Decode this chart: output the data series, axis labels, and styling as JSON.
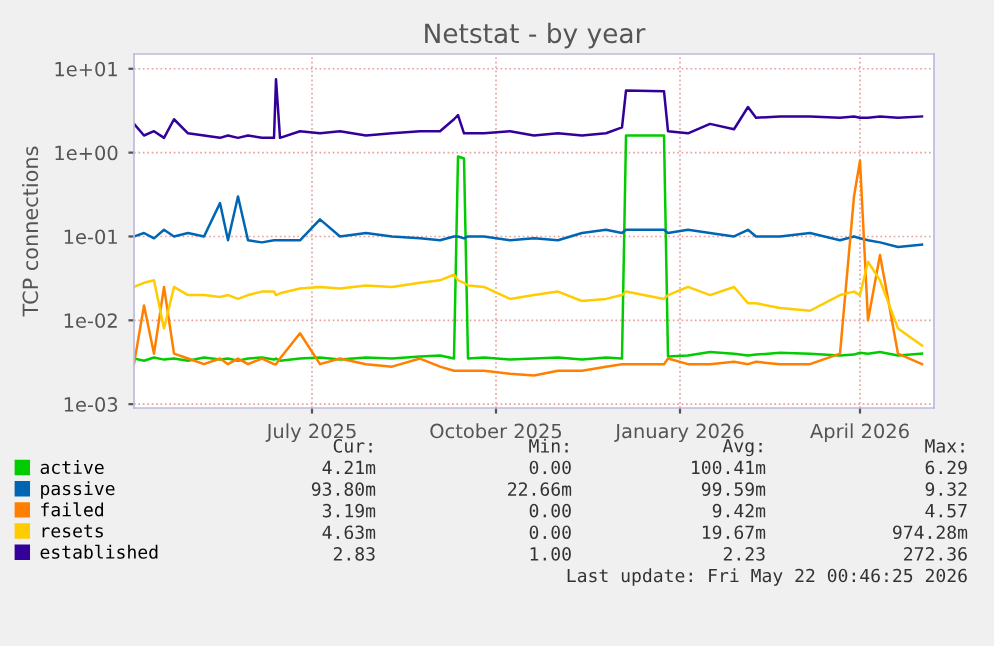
{
  "chart_data": {
    "type": "line",
    "title": "Netstat - by year",
    "ylabel": "TCP connections",
    "log": "y",
    "x": [
      "2025-04-03",
      "2025-04-08",
      "2025-04-13",
      "2025-04-18",
      "2025-04-23",
      "2025-04-30",
      "2025-05-08",
      "2025-05-16",
      "2025-05-20",
      "2025-05-25",
      "2025-05-30",
      "2025-06-06",
      "2025-06-12",
      "2025-06-13",
      "2025-06-15",
      "2025-06-25",
      "2025-07-05",
      "2025-07-15",
      "2025-07-28",
      "2025-08-10",
      "2025-08-24",
      "2025-09-03",
      "2025-09-10",
      "2025-09-12",
      "2025-09-15",
      "2025-09-17",
      "2025-09-25",
      "2025-10-08",
      "2025-10-20",
      "2025-11-01",
      "2025-11-13",
      "2025-11-25",
      "2025-12-03",
      "2025-12-05",
      "2025-12-24",
      "2025-12-26",
      "2026-01-05",
      "2026-01-16",
      "2026-01-28",
      "2026-02-04",
      "2026-02-08",
      "2026-02-20",
      "2026-03-07",
      "2026-03-22",
      "2026-03-29",
      "2026-04-01",
      "2026-04-05",
      "2026-04-11",
      "2026-04-20",
      "2026-05-02"
    ],
    "series": [
      {
        "name": "active",
        "color": "#00cc00",
        "values": [
          0.0035,
          0.0033,
          0.0036,
          0.0034,
          0.0035,
          0.0033,
          0.0036,
          0.0034,
          0.0035,
          0.0033,
          0.0035,
          0.0036,
          0.0034,
          0.0035,
          0.0033,
          0.0035,
          0.0036,
          0.0034,
          0.0036,
          0.0035,
          0.0037,
          0.0038,
          0.0035,
          0.9,
          0.85,
          0.0035,
          0.0036,
          0.0034,
          0.0035,
          0.0036,
          0.0034,
          0.0036,
          0.0035,
          1.6,
          1.6,
          0.0037,
          0.0038,
          0.0042,
          0.004,
          0.0038,
          0.0039,
          0.0041,
          0.004,
          0.0038,
          0.0039,
          0.0041,
          0.004,
          0.0042,
          0.0038,
          0.004
        ]
      },
      {
        "name": "passive",
        "color": "#0066b3",
        "values": [
          0.1,
          0.11,
          0.095,
          0.12,
          0.1,
          0.11,
          0.1,
          0.25,
          0.09,
          0.3,
          0.09,
          0.085,
          0.09,
          0.09,
          0.09,
          0.09,
          0.16,
          0.1,
          0.11,
          0.1,
          0.095,
          0.09,
          0.1,
          0.1,
          0.095,
          0.1,
          0.1,
          0.09,
          0.095,
          0.09,
          0.11,
          0.12,
          0.11,
          0.12,
          0.12,
          0.11,
          0.12,
          0.11,
          0.1,
          0.12,
          0.1,
          0.1,
          0.11,
          0.09,
          0.1,
          0.095,
          0.09,
          0.085,
          0.075,
          0.08
        ]
      },
      {
        "name": "failed",
        "color": "#ff8000",
        "values": [
          0.003,
          0.015,
          0.004,
          0.025,
          0.004,
          0.0035,
          0.003,
          0.0035,
          0.003,
          0.0035,
          0.003,
          0.0035,
          0.003,
          0.003,
          0.0035,
          0.007,
          0.003,
          0.0035,
          0.003,
          0.0028,
          0.0035,
          0.0028,
          0.0025,
          0.0025,
          0.0025,
          0.0025,
          0.0025,
          0.0023,
          0.0022,
          0.0025,
          0.0025,
          0.0028,
          0.003,
          0.003,
          0.003,
          0.0035,
          0.003,
          0.003,
          0.0032,
          0.003,
          0.0032,
          0.003,
          0.003,
          0.004,
          0.3,
          0.8,
          0.01,
          0.06,
          0.004,
          0.003
        ]
      },
      {
        "name": "resets",
        "color": "#ffcc00",
        "values": [
          0.025,
          0.028,
          0.03,
          0.008,
          0.025,
          0.02,
          0.02,
          0.019,
          0.02,
          0.018,
          0.02,
          0.022,
          0.022,
          0.02,
          0.021,
          0.024,
          0.025,
          0.024,
          0.026,
          0.025,
          0.028,
          0.03,
          0.035,
          0.03,
          0.028,
          0.026,
          0.025,
          0.018,
          0.02,
          0.022,
          0.017,
          0.018,
          0.02,
          0.022,
          0.018,
          0.02,
          0.025,
          0.02,
          0.025,
          0.016,
          0.016,
          0.014,
          0.013,
          0.02,
          0.022,
          0.02,
          0.05,
          0.03,
          0.008,
          0.005
        ]
      },
      {
        "name": "established",
        "color": "#330099",
        "values": [
          2.2,
          1.6,
          1.8,
          1.5,
          2.5,
          1.7,
          1.6,
          1.5,
          1.6,
          1.5,
          1.6,
          1.5,
          1.5,
          7.5,
          1.5,
          1.8,
          1.7,
          1.8,
          1.6,
          1.7,
          1.8,
          1.8,
          2.5,
          2.8,
          1.7,
          1.7,
          1.7,
          1.8,
          1.6,
          1.7,
          1.6,
          1.7,
          2.0,
          5.5,
          5.4,
          1.8,
          1.7,
          2.2,
          1.9,
          3.5,
          2.6,
          2.7,
          2.7,
          2.6,
          2.7,
          2.6,
          2.6,
          2.7,
          2.6,
          2.7
        ]
      }
    ],
    "xlim": [
      "2025-04-03",
      "2026-05-08"
    ],
    "xticks": [
      {
        "value": "2025-07-01",
        "label": "July 2025"
      },
      {
        "value": "2025-10-01",
        "label": "October 2025"
      },
      {
        "value": "2026-01-01",
        "label": "January 2026"
      },
      {
        "value": "2026-04-01",
        "label": "April 2026"
      }
    ],
    "ylim": [
      0.0009,
      15
    ],
    "yticks": [
      {
        "value": 0.001,
        "label": "1e-03"
      },
      {
        "value": 0.01,
        "label": "1e-02"
      },
      {
        "value": 0.1,
        "label": "1e-01"
      },
      {
        "value": 1,
        "label": "1e+00"
      },
      {
        "value": 10,
        "label": "1e+01"
      }
    ],
    "grid": true,
    "marker": "none",
    "line_style": "solid",
    "legend": "bottom",
    "annotations": [
      "Cur:",
      "Min:",
      "Avg:",
      "Max:",
      "4.21m",
      "0.00",
      "100.41m",
      "6.29",
      "93.80m",
      "22.66m",
      "99.59m",
      "9.32",
      "3.19m",
      "0.00",
      "9.42m",
      "4.57",
      "4.63m",
      "0.00",
      "19.67m",
      "974.28m",
      "2.83",
      "1.00",
      "2.23",
      "272.36",
      "Last update: Fri May 22 00:46:25 2026"
    ]
  }
}
